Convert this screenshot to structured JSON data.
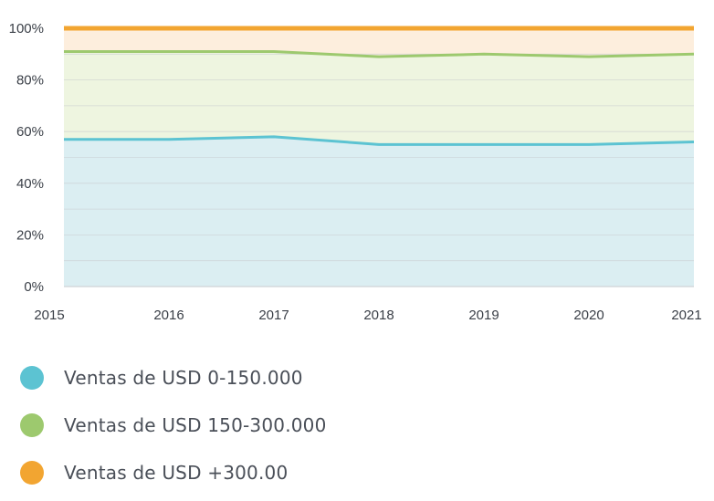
{
  "chart_data": {
    "type": "area",
    "stacked": true,
    "title": "",
    "xlabel": "",
    "ylabel": "",
    "categories": [
      "2015",
      "2016",
      "2017",
      "2018",
      "2019",
      "2020",
      "2021"
    ],
    "y_ticks": [
      "0%",
      "20%",
      "40%",
      "60%",
      "80%",
      "100%"
    ],
    "ylim": [
      0,
      100
    ],
    "grid": true,
    "legend_position": "bottom",
    "series": [
      {
        "name": "Ventas de USD 0-150.000",
        "color": "#5cc3d2",
        "fill": "#dbeef2",
        "values": [
          57,
          57,
          58,
          55,
          55,
          55,
          56
        ]
      },
      {
        "name": "Ventas de USD 150-300.000",
        "color": "#9dc96e",
        "fill": "#eef5e0",
        "values": [
          34,
          34,
          33,
          34,
          35,
          34,
          34
        ]
      },
      {
        "name": "Ventas de USD +300.00",
        "color": "#f2a531",
        "fill": "#fdeedd",
        "values": [
          9,
          9,
          9,
          11,
          10,
          11,
          10
        ]
      }
    ]
  }
}
